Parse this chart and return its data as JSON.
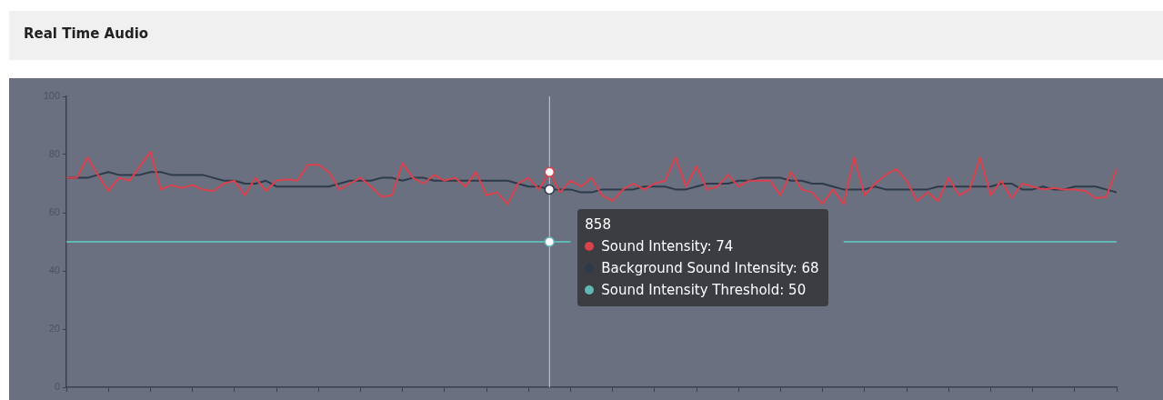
{
  "chart_data": {
    "type": "line",
    "title": "Real Time Audio",
    "categories": [
      null,
      null,
      null,
      null,
      null,
      null,
      null,
      null,
      null,
      null,
      null,
      null,
      null,
      null,
      null,
      null,
      null,
      null,
      null,
      null,
      null,
      null,
      null,
      null,
      null,
      null,
      null,
      null,
      null,
      null,
      null,
      null,
      null,
      null,
      null,
      null,
      null,
      null,
      null,
      null,
      null,
      null,
      null,
      null,
      null,
      null,
      null,
      null,
      null,
      null,
      null,
      null,
      null,
      null,
      null,
      null,
      null,
      null,
      null,
      null,
      null,
      null,
      null,
      null,
      null,
      null,
      null,
      null,
      null,
      null,
      null,
      null,
      null,
      null,
      null,
      null,
      null,
      null,
      null,
      null,
      null,
      null,
      null,
      null,
      null,
      null,
      null,
      null,
      null,
      null,
      null,
      null,
      null,
      null,
      null,
      null,
      null,
      null,
      null,
      null,
      null
    ],
    "annotations": [
      "858"
    ],
    "series": [
      {
        "name": "Sound Intensity",
        "color": "#d9414d",
        "values": [
          72,
          72,
          79,
          73,
          67.5,
          72,
          71,
          76,
          81,
          68,
          69.5,
          68.5,
          69.5,
          68,
          67.5,
          70,
          71,
          66,
          72,
          67.5,
          71,
          71.5,
          71,
          76.5,
          76.5,
          74,
          68,
          70,
          72,
          69,
          65.5,
          66,
          77,
          72,
          70,
          73,
          71,
          72,
          69,
          74,
          66,
          67,
          63,
          70,
          72,
          68,
          74,
          67,
          71,
          69,
          72,
          66,
          64,
          68,
          70,
          68,
          70,
          71,
          79,
          69,
          76,
          68,
          69,
          73,
          69,
          71,
          71,
          71,
          66,
          74,
          68,
          67,
          63,
          68,
          63,
          79,
          66,
          70,
          73,
          75,
          71,
          64,
          67,
          64,
          72,
          66,
          68,
          79,
          66,
          71,
          65,
          70,
          69,
          68,
          68.5,
          68,
          68,
          67.5,
          65,
          65.5,
          75
        ],
        "value_labels": [
          null,
          null,
          null,
          null,
          null,
          null,
          null,
          null,
          null,
          null,
          null,
          null,
          null,
          null,
          null,
          null,
          null,
          null,
          null,
          null,
          null,
          null,
          null,
          null,
          null,
          null,
          null,
          null,
          null,
          null,
          null,
          null,
          null,
          null,
          null,
          null,
          null,
          null,
          null,
          null,
          null,
          null,
          null,
          null,
          null,
          null,
          ": 74",
          null,
          null,
          null,
          null,
          null,
          null,
          null,
          null,
          null,
          null,
          null,
          null,
          null,
          null,
          null,
          null,
          null,
          null,
          null,
          null,
          null,
          null,
          null,
          null,
          null,
          null,
          null,
          null,
          null,
          null,
          null,
          null,
          null,
          null,
          null,
          null,
          null,
          null,
          null,
          null,
          null,
          null,
          null,
          null,
          null,
          null,
          null,
          null,
          null,
          null,
          null,
          null,
          null,
          null
        ]
      },
      {
        "name": "Background Sound Intensity",
        "color": "#2c3a4a",
        "values": [
          72,
          72,
          72,
          73,
          74,
          73,
          73,
          73,
          74,
          74,
          73,
          73,
          73,
          73,
          72,
          71,
          71,
          70,
          70,
          71,
          69,
          69,
          69,
          69,
          69,
          69,
          70,
          71,
          71,
          71,
          72,
          72,
          71,
          72,
          72,
          71,
          71,
          71,
          71,
          71,
          71,
          71,
          71,
          70,
          69,
          69,
          68,
          68,
          68,
          67,
          67,
          68,
          68,
          68,
          68,
          69,
          69,
          69,
          68,
          68,
          69,
          70,
          70,
          70,
          71,
          71,
          72,
          72,
          72,
          71,
          71,
          70,
          70,
          69,
          68,
          68,
          68,
          69,
          68,
          68,
          68,
          68,
          68,
          69,
          69,
          69,
          69,
          69,
          69,
          70,
          70,
          68,
          68,
          69,
          68,
          68,
          69,
          69,
          69,
          68,
          67
        ],
        "value_labels": [
          null,
          null,
          null,
          null,
          null,
          null,
          null,
          null,
          null,
          null,
          null,
          null,
          null,
          null,
          null,
          null,
          null,
          null,
          null,
          null,
          null,
          null,
          null,
          null,
          null,
          null,
          null,
          null,
          null,
          null,
          null,
          null,
          null,
          null,
          null,
          null,
          null,
          null,
          null,
          null,
          null,
          null,
          null,
          null,
          null,
          null,
          ": 68",
          null,
          null,
          null,
          null,
          null,
          null,
          null,
          null,
          null,
          null,
          null,
          null,
          null,
          null,
          null,
          null,
          null,
          null,
          null,
          null,
          null,
          null,
          null,
          null,
          null,
          null,
          null,
          null,
          null,
          null,
          null,
          null,
          null,
          null,
          null,
          null,
          null,
          null,
          null,
          null,
          null,
          null,
          null,
          null,
          null,
          null,
          null,
          null,
          null,
          null,
          null,
          null,
          null,
          null
        ]
      },
      {
        "name": "Sound Intensity Threshold",
        "color": "#5fb8b4",
        "values": [
          50,
          50,
          50,
          50,
          50,
          50,
          50,
          50,
          50,
          50,
          50,
          50,
          50,
          50,
          50,
          50,
          50,
          50,
          50,
          50,
          50,
          50,
          50,
          50,
          50,
          50,
          50,
          50,
          50,
          50,
          50,
          50,
          50,
          50,
          50,
          50,
          50,
          50,
          50,
          50,
          50,
          50,
          50,
          50,
          50,
          50,
          50,
          50,
          50,
          null,
          null,
          null,
          null,
          null,
          null,
          null,
          null,
          null,
          null,
          null,
          null,
          null,
          null,
          null,
          null,
          null,
          null,
          null,
          null,
          null,
          null,
          null,
          null,
          null,
          50,
          50,
          50,
          50,
          50,
          50,
          50,
          50,
          50,
          50,
          50,
          50,
          50,
          50,
          50,
          50,
          50,
          50,
          50,
          50,
          50,
          50,
          50,
          50,
          50,
          50,
          50
        ],
        "value_labels": [
          null,
          null,
          null,
          null,
          null,
          null,
          null,
          null,
          null,
          null,
          null,
          null,
          null,
          null,
          null,
          null,
          null,
          null,
          null,
          null,
          null,
          null,
          null,
          null,
          null,
          null,
          null,
          null,
          null,
          null,
          null,
          null,
          null,
          null,
          null,
          null,
          null,
          null,
          null,
          null,
          null,
          null,
          null,
          null,
          null,
          null,
          ": 50",
          null,
          null,
          null,
          null,
          null,
          null,
          null,
          null,
          null,
          null,
          null,
          null,
          null,
          null,
          null,
          null,
          null,
          null,
          null,
          null,
          null,
          null,
          null,
          null,
          null,
          null,
          null,
          null,
          null,
          null,
          null,
          null,
          null,
          null,
          null,
          null,
          null,
          null,
          null,
          null,
          null,
          null,
          null,
          null,
          null,
          null,
          null,
          null,
          null,
          null,
          null,
          null,
          null,
          null
        ]
      }
    ],
    "ylim": [
      0,
      100
    ],
    "yticks": [
      0,
      20,
      40,
      60,
      80,
      100
    ],
    "grid": false,
    "marker": "none",
    "line_style": "solid",
    "tick_labels": "y"
  }
}
